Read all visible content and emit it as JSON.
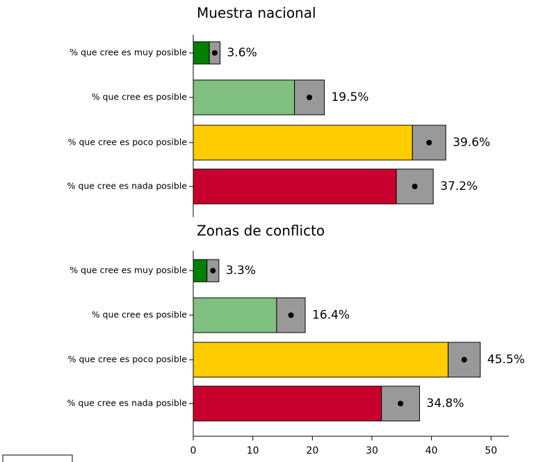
{
  "chart_data": [
    {
      "type": "bar",
      "orientation": "horizontal",
      "title": "Muestra nacional",
      "categories": [
        "% que cree es muy posible",
        "% que cree es posible",
        "% que cree es poco posible",
        "% que cree es nada posible"
      ],
      "values": [
        3.6,
        19.5,
        39.6,
        37.2
      ],
      "value_labels": [
        "3.6%",
        "19.5%",
        "39.6%",
        "37.2%"
      ],
      "errors": [
        0.9,
        2.5,
        2.8,
        3.1
      ],
      "colors": [
        "#008000",
        "#80c080",
        "#ffcc00",
        "#c8002d"
      ],
      "error_color": "#999999",
      "xlim": [
        0,
        53
      ]
    },
    {
      "type": "bar",
      "orientation": "horizontal",
      "title": "Zonas de conflicto",
      "categories": [
        "% que cree es muy posible",
        "% que cree es posible",
        "% que cree es poco posible",
        "% que cree es nada posible"
      ],
      "values": [
        3.3,
        16.4,
        45.5,
        34.8
      ],
      "value_labels": [
        "3.3%",
        "16.4%",
        "45.5%",
        "34.8%"
      ],
      "errors": [
        1.0,
        2.4,
        2.7,
        3.2
      ],
      "colors": [
        "#008000",
        "#80c080",
        "#ffcc00",
        "#c8002d"
      ],
      "error_color": "#999999",
      "xlim": [
        0,
        53
      ],
      "xticks": [
        0,
        10,
        20,
        30,
        40,
        50
      ]
    }
  ]
}
